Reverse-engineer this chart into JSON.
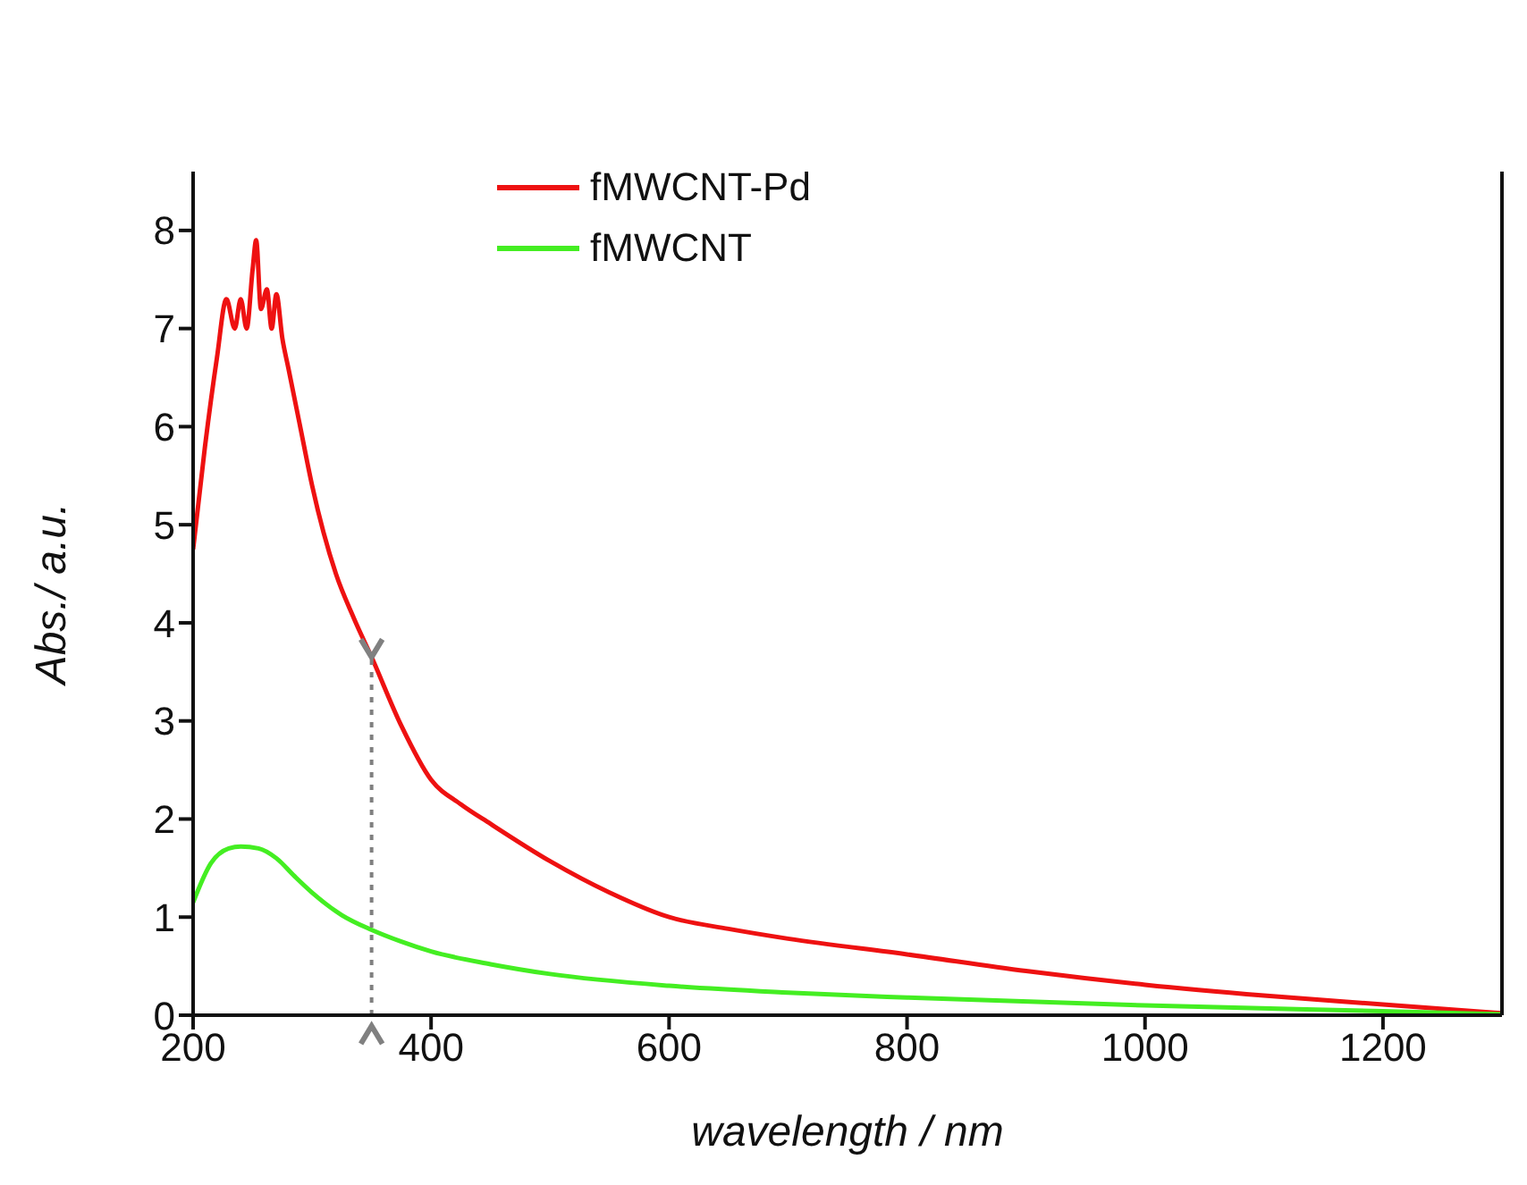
{
  "chart_data": {
    "type": "line",
    "xlabel": "wavelength / nm",
    "ylabel": "Abs./ a.u.",
    "xlim": [
      200,
      1300
    ],
    "ylim": [
      0,
      8.6
    ],
    "xticks": [
      200,
      400,
      600,
      800,
      1000,
      1200
    ],
    "yticks": [
      0,
      1,
      2,
      3,
      4,
      5,
      6,
      7,
      8
    ],
    "legend": "top",
    "marker": "none",
    "line_style": "solid",
    "ref_lines": [
      {
        "axis": "x",
        "value": 350,
        "color": "#808080",
        "line_style": "dotted"
      }
    ],
    "series": [
      {
        "name": "fMWCNT-Pd",
        "color": "#ee1111",
        "x": [
          200,
          210,
          220,
          228,
          235,
          240,
          245,
          250,
          253,
          257,
          262,
          266,
          270,
          275,
          280,
          290,
          300,
          320,
          335,
          350,
          375,
          400,
          425,
          450,
          500,
          550,
          600,
          650,
          700,
          800,
          900,
          1000,
          1100,
          1200,
          1300
        ],
        "values": [
          4.75,
          5.8,
          6.7,
          7.3,
          7.0,
          7.3,
          7.0,
          7.6,
          7.9,
          7.2,
          7.4,
          7.0,
          7.35,
          6.9,
          6.6,
          6.0,
          5.4,
          4.5,
          4.05,
          3.65,
          2.95,
          2.4,
          2.15,
          1.95,
          1.57,
          1.25,
          1.0,
          0.88,
          0.78,
          0.62,
          0.45,
          0.31,
          0.2,
          0.11,
          0.02
        ]
      },
      {
        "name": "fMWCNT",
        "color": "#44ee22",
        "x": [
          200,
          215,
          230,
          240,
          255,
          270,
          285,
          300,
          325,
          350,
          375,
          400,
          450,
          500,
          600,
          700,
          800,
          1000,
          1200,
          1300
        ],
        "values": [
          1.15,
          1.55,
          1.7,
          1.72,
          1.7,
          1.6,
          1.42,
          1.25,
          1.02,
          0.87,
          0.75,
          0.65,
          0.52,
          0.42,
          0.3,
          0.23,
          0.18,
          0.1,
          0.04,
          0.01
        ]
      }
    ]
  }
}
